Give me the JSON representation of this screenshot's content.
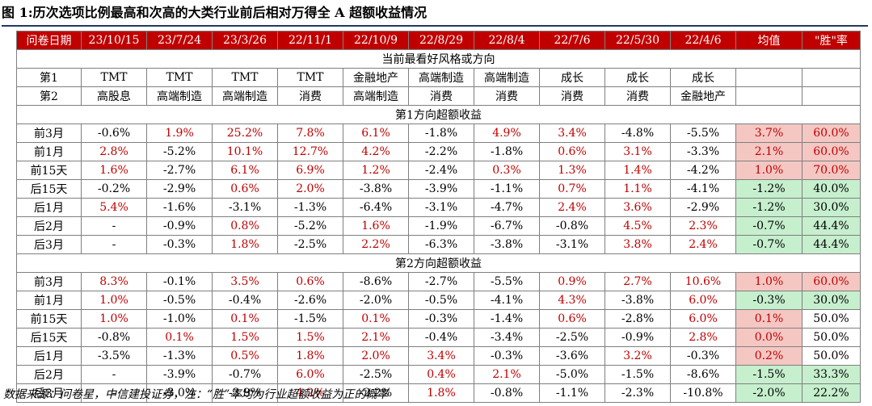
{
  "title": "图 1:历次选项比例最高和次高的大类行业前后相对万得全 A 超额收益情况",
  "header": [
    "问卷日期",
    "23/10/15",
    "23/7/24",
    "23/3/26",
    "22/11/1",
    "22/10/9",
    "22/8/29",
    "22/8/4",
    "22/7/6",
    "22/5/30",
    "22/4/6",
    "均值",
    "\"胜\"率"
  ],
  "style_section": "当前最看好风格或方向",
  "first_choice": {
    "label": "第1",
    "values": [
      "TMT",
      "TMT",
      "TMT",
      "TMT",
      "金融地产",
      "高端制造",
      "高端制造",
      "成长",
      "成长",
      "成长",
      "",
      ""
    ]
  },
  "second_choice": {
    "label": "第2",
    "values": [
      "高股息",
      "高端制造",
      "高端制造",
      "消费",
      "高端制造",
      "消费",
      "消费",
      "消费",
      "消费",
      "金融地产",
      "",
      ""
    ]
  },
  "section1_title": "第1方向超额收益",
  "section1_rows": [
    {
      "label": "前3月",
      "values": [
        "-0.6%",
        "1.9%",
        "25.2%",
        "7.8%",
        "6.1%",
        "-1.8%",
        "4.9%",
        "3.4%",
        "-4.8%",
        "-5.5%",
        "3.7%",
        "60.0%"
      ]
    },
    {
      "label": "前1月",
      "values": [
        "2.8%",
        "-5.2%",
        "10.1%",
        "12.7%",
        "4.2%",
        "-2.2%",
        "-1.8%",
        "0.6%",
        "3.1%",
        "-3.3%",
        "2.1%",
        "60.0%"
      ]
    },
    {
      "label": "前15天",
      "values": [
        "1.6%",
        "-2.7%",
        "6.1%",
        "6.9%",
        "1.2%",
        "-2.4%",
        "0.3%",
        "1.3%",
        "1.4%",
        "-4.2%",
        "1.0%",
        "70.0%"
      ]
    },
    {
      "label": "后15天",
      "values": [
        "-0.2%",
        "-2.9%",
        "0.6%",
        "2.0%",
        "-3.8%",
        "-3.9%",
        "-1.1%",
        "0.7%",
        "1.1%",
        "-4.1%",
        "-1.2%",
        "40.0%"
      ]
    },
    {
      "label": "后1月",
      "values": [
        "5.4%",
        "-1.6%",
        "-3.1%",
        "-1.3%",
        "-6.4%",
        "-3.1%",
        "-4.7%",
        "2.4%",
        "3.6%",
        "-2.9%",
        "-1.2%",
        "30.0%"
      ]
    },
    {
      "label": "后2月",
      "values": [
        "-",
        "-0.9%",
        "0.8%",
        "-5.2%",
        "1.6%",
        "-1.9%",
        "-6.7%",
        "-0.8%",
        "4.5%",
        "2.3%",
        "-0.7%",
        "44.4%"
      ]
    },
    {
      "label": "后3月",
      "values": [
        "-",
        "-0.3%",
        "1.8%",
        "-2.5%",
        "2.2%",
        "-6.3%",
        "-3.8%",
        "-3.1%",
        "3.8%",
        "2.4%",
        "-0.7%",
        "44.4%"
      ]
    }
  ],
  "section2_title": "第2方向超额收益",
  "section2_rows": [
    {
      "label": "前3月",
      "values": [
        "8.3%",
        "-0.1%",
        "3.5%",
        "0.6%",
        "-8.6%",
        "-2.7%",
        "-5.5%",
        "0.9%",
        "2.7%",
        "10.6%",
        "1.0%",
        "60.0%"
      ]
    },
    {
      "label": "前1月",
      "values": [
        "1.0%",
        "-0.5%",
        "-0.4%",
        "-2.6%",
        "-2.0%",
        "-0.5%",
        "-4.1%",
        "4.3%",
        "-3.8%",
        "6.0%",
        "-0.3%",
        "30.0%"
      ]
    },
    {
      "label": "前15天",
      "values": [
        "1.0%",
        "-1.0%",
        "0.1%",
        "-1.5%",
        "0.1%",
        "-0.3%",
        "-1.4%",
        "0.6%",
        "-2.8%",
        "6.0%",
        "0.1%",
        "50.0%"
      ]
    },
    {
      "label": "后15天",
      "values": [
        "-0.8%",
        "0.1%",
        "1.5%",
        "1.5%",
        "2.1%",
        "-0.4%",
        "-3.4%",
        "-2.5%",
        "-0.9%",
        "2.8%",
        "0.0%",
        "50.0%"
      ]
    },
    {
      "label": "后1月",
      "values": [
        "-3.5%",
        "-1.3%",
        "0.5%",
        "1.8%",
        "2.0%",
        "3.4%",
        "-0.3%",
        "-3.6%",
        "3.2%",
        "-0.3%",
        "0.2%",
        "50.0%"
      ]
    },
    {
      "label": "后2月",
      "values": [
        "-",
        "-3.9%",
        "-0.7%",
        "6.0%",
        "-2.5%",
        "0.4%",
        "2.1%",
        "-5.0%",
        "-1.5%",
        "-8.6%",
        "-1.5%",
        "33.3%"
      ]
    },
    {
      "label": "后3月",
      "values": [
        "-",
        "-3.0%",
        "-3.9%",
        "4.2%",
        "-2.2%",
        "1.8%",
        "-0.8%",
        "-1.1%",
        "-2.3%",
        "-10.8%",
        "-2.0%",
        "22.2%"
      ]
    }
  ],
  "colors": {
    "header_bg": "#c00000",
    "positive_text": "#c00000",
    "positive_fill": "#f4c7c3",
    "negative_fill": "#c6efce"
  },
  "source_note": "数据来源：问卷星，中信建投证券，注：“胜”率均为行业超额收益为正的概率"
}
